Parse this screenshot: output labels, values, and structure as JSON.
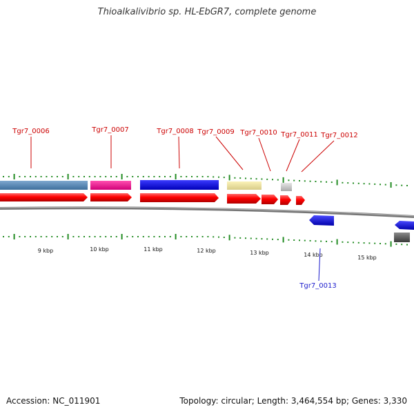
{
  "title": "Thioalkalivibrio sp. HL-EbGR7, complete genome",
  "accession": "Accession: NC_011901",
  "summary": "Topology: circular; Length: 3,464,554 bp; Genes: 3,330",
  "colors": {
    "cds_forward": "#ff0000",
    "cds_reverse": "#1f1fee",
    "label_top": "#cc0000",
    "label_bottom": "#1a1acc",
    "ticks": "#228b22"
  },
  "kbp_labels": [
    "9 kbp",
    "10 kbp",
    "11 kbp",
    "12 kbp",
    "13 kbp",
    "14 kbp",
    "15 kbp"
  ],
  "top_labels": [
    "Tgr7_0006",
    "Tgr7_0007",
    "Tgr7_0008",
    "Tgr7_0009",
    "Tgr7_0010",
    "Tgr7_0011",
    "Tgr7_0012"
  ],
  "bottom_labels": [
    "Tgr7_0013"
  ]
}
